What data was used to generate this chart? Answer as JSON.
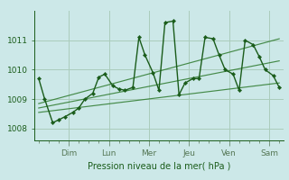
{
  "title": "",
  "xlabel": "Pression niveau de la mer( hPa )",
  "bg_color": "#cce8e8",
  "grid_color": "#aaccbb",
  "line_color": "#1a5c1a",
  "marker_color": "#1a5c1a",
  "trend_color": "#2d7a2d",
  "ylim": [
    1007.6,
    1012.0
  ],
  "day_labels": [
    "Dim",
    "Lun",
    "Mer",
    "Jeu",
    "Ven",
    "Sam"
  ],
  "yticks": [
    1008,
    1009,
    1010,
    1011
  ],
  "x_data": [
    0,
    0.3,
    0.7,
    1.0,
    1.3,
    1.7,
    2.0,
    2.3,
    2.7,
    3.0,
    3.3,
    3.7,
    4.0,
    4.3,
    4.7,
    5.0,
    5.3,
    5.7,
    6.0,
    6.3,
    6.7,
    7.0,
    7.3,
    7.7,
    8.0,
    8.3,
    8.7,
    9.0,
    9.3,
    9.7,
    10.0,
    10.3,
    10.7,
    11.0,
    11.3,
    11.7,
    12.0
  ],
  "y_main": [
    1009.7,
    1009.0,
    1008.2,
    1008.3,
    1008.4,
    1008.55,
    1008.7,
    1009.0,
    1009.2,
    1009.75,
    1009.85,
    1009.45,
    1009.35,
    1009.3,
    1009.4,
    1011.1,
    1010.5,
    1009.9,
    1009.3,
    1011.6,
    1011.65,
    1009.15,
    1009.55,
    1009.7,
    1009.7,
    1011.1,
    1011.05,
    1010.5,
    1010.0,
    1009.85,
    1009.3,
    1011.0,
    1010.85,
    1010.45,
    1010.0,
    1009.8,
    1009.4
  ],
  "day_x_positions": [
    1.5,
    3.5,
    5.5,
    7.5,
    9.5,
    11.5
  ],
  "trend_lines": [
    {
      "x": [
        0.0,
        12.0
      ],
      "y": [
        1008.55,
        1009.55
      ]
    },
    {
      "x": [
        0.0,
        12.0
      ],
      "y": [
        1008.7,
        1010.3
      ]
    },
    {
      "x": [
        0.0,
        12.0
      ],
      "y": [
        1008.85,
        1011.05
      ]
    }
  ],
  "xlim": [
    -0.2,
    12.2
  ]
}
